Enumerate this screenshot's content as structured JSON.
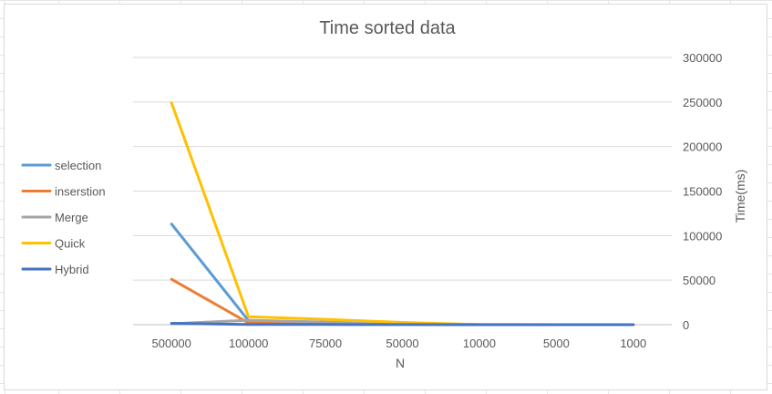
{
  "chart_data": {
    "type": "line",
    "title": "Time sorted data",
    "xlabel": "N",
    "ylabel": "Time(ms)",
    "categories": [
      "500000",
      "100000",
      "75000",
      "50000",
      "10000",
      "5000",
      "1000"
    ],
    "ylim": [
      0,
      300000
    ],
    "yticks": [
      0,
      50000,
      100000,
      150000,
      200000,
      250000,
      300000
    ],
    "y_axis_side": "right",
    "grid": true,
    "legend_position": "left",
    "series": [
      {
        "name": "selection",
        "color": "#5B9BD5",
        "values": [
          113000,
          4500,
          2500,
          1200,
          60,
          15,
          1
        ]
      },
      {
        "name": "inserstion",
        "color": "#ED7D31",
        "values": [
          51000,
          2000,
          1200,
          500,
          25,
          8,
          1
        ]
      },
      {
        "name": "Merge",
        "color": "#A5A5A5",
        "values": [
          1000,
          5000,
          3000,
          1500,
          100,
          30,
          5
        ]
      },
      {
        "name": "Quick",
        "color": "#FFC000",
        "values": [
          249000,
          9000,
          6000,
          2500,
          200,
          50,
          10
        ]
      },
      {
        "name": "Hybrid",
        "color": "#4472C4",
        "values": [
          1500,
          300,
          200,
          100,
          20,
          5,
          1
        ]
      }
    ]
  }
}
